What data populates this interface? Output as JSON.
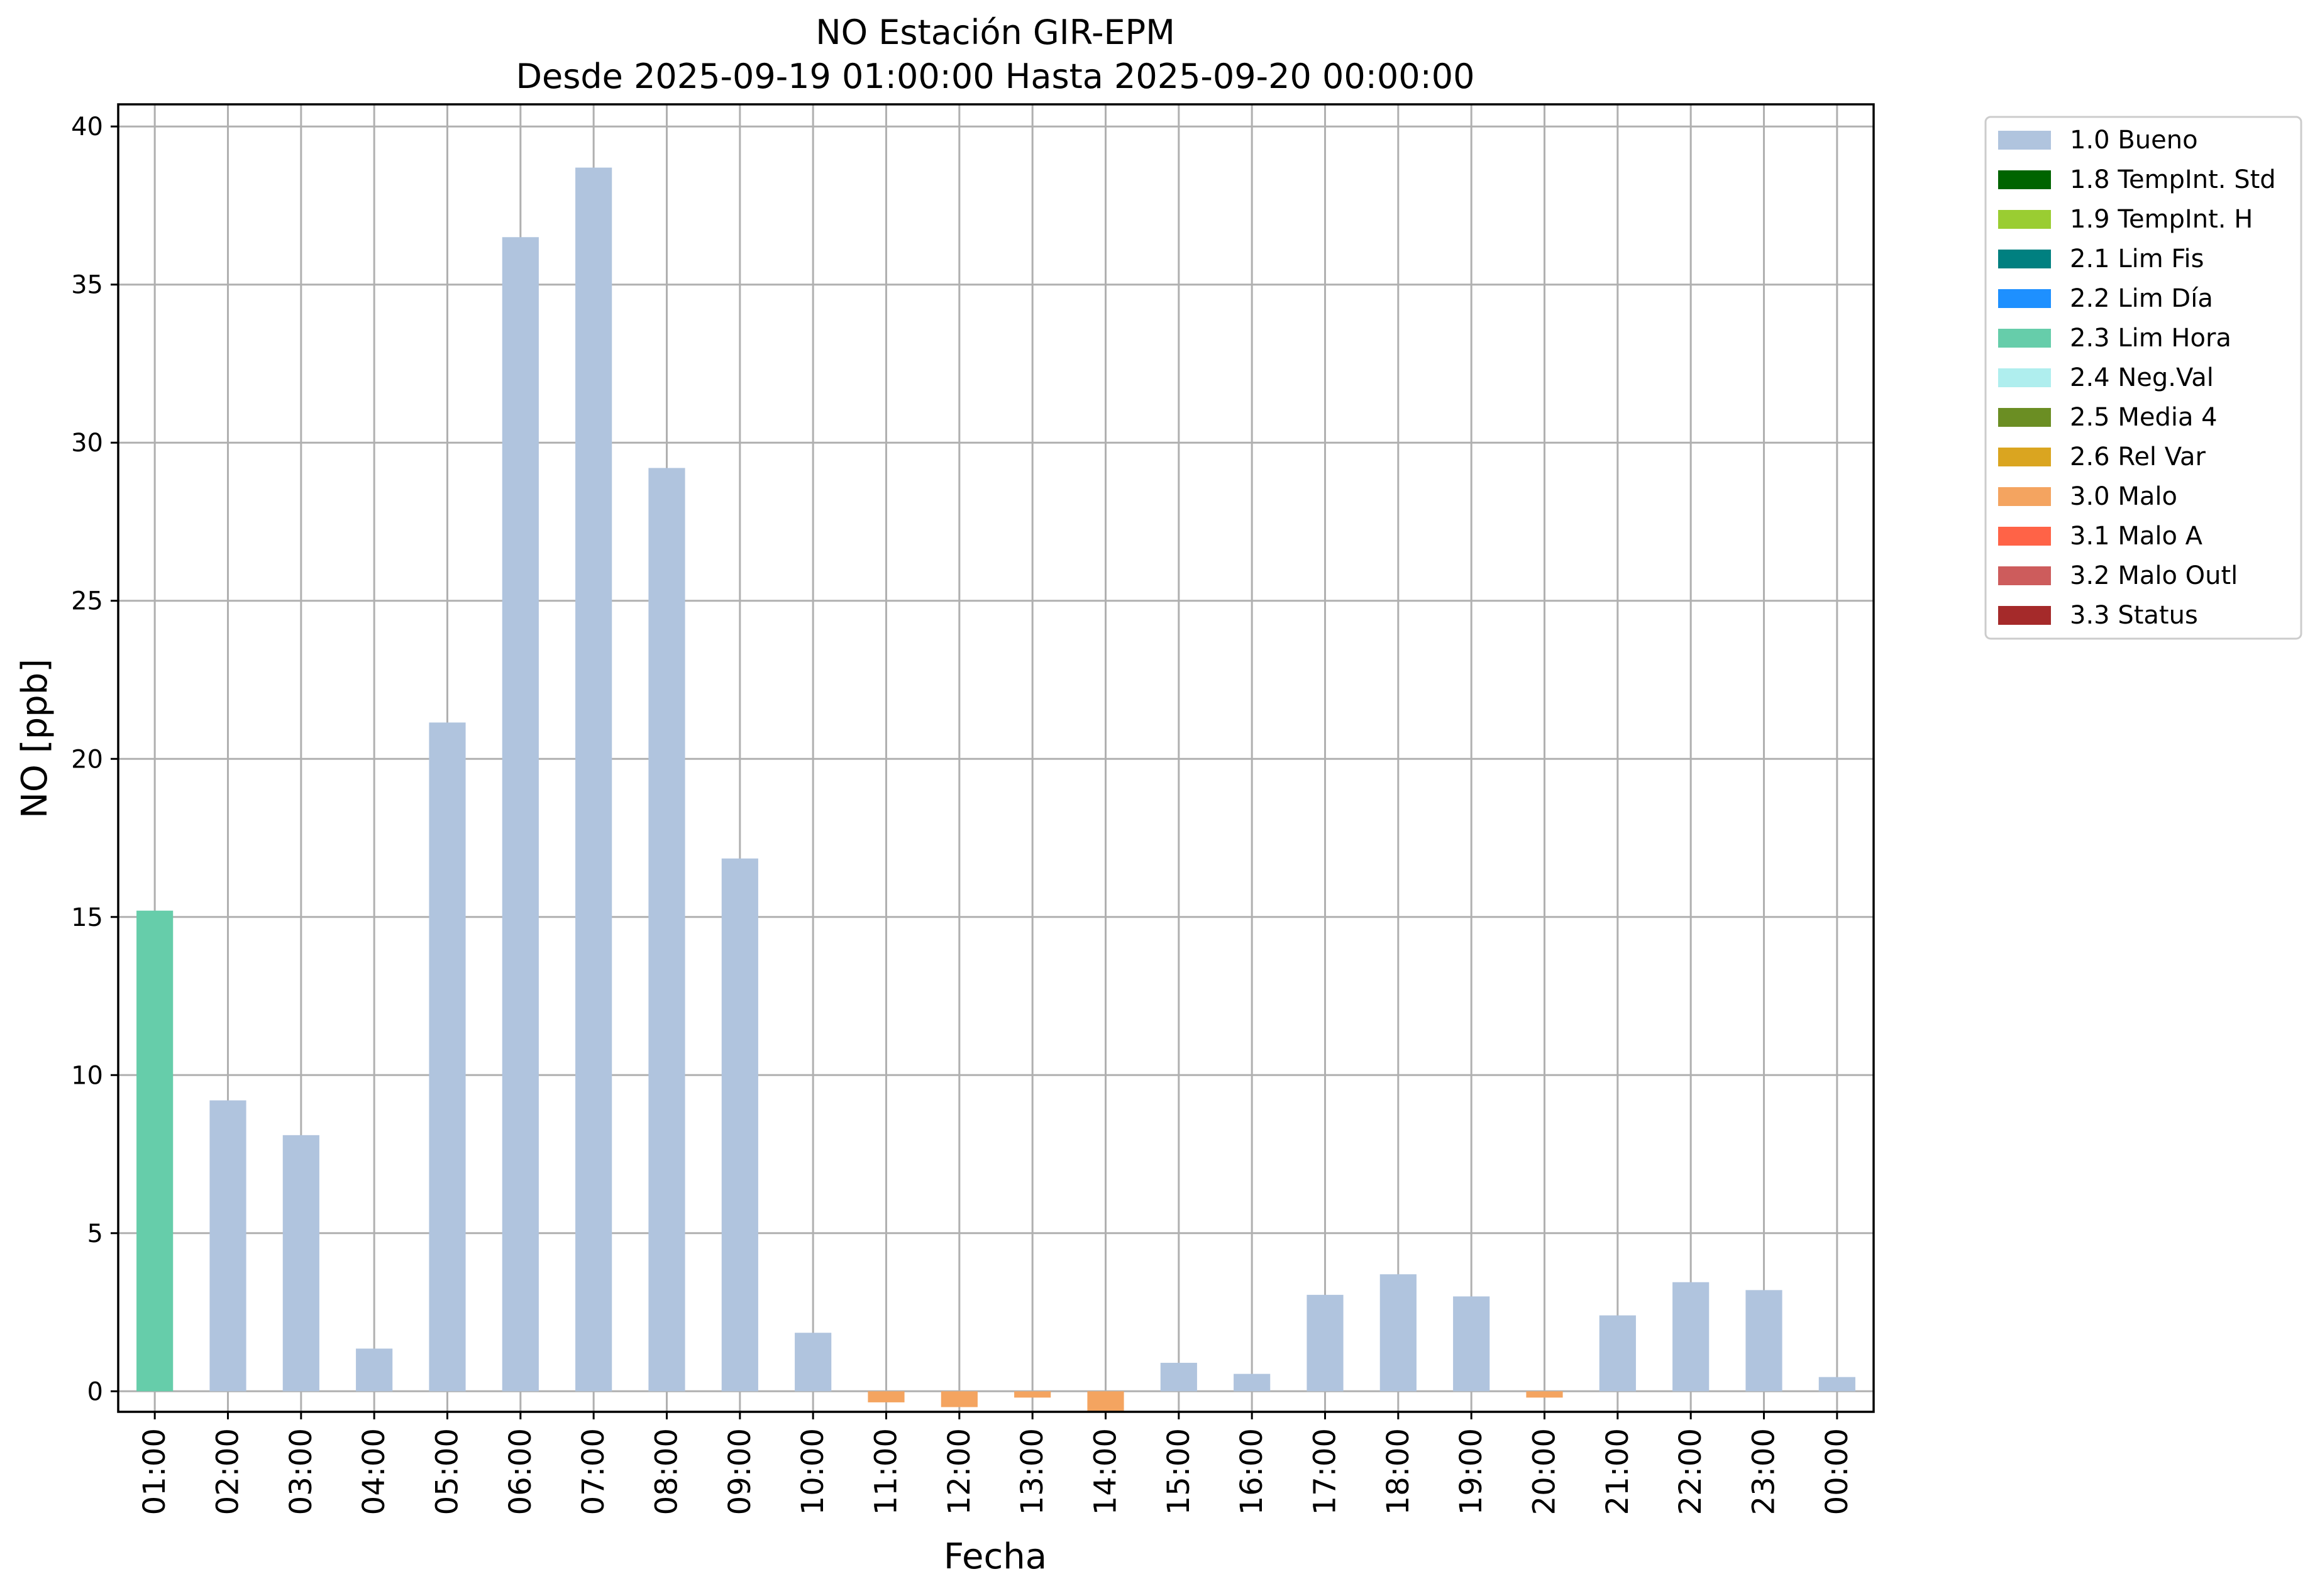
{
  "chart_data": {
    "type": "bar",
    "title": "NO Estación GIR-EPM",
    "subtitle": "Desde 2025-09-19 01:00:00 Hasta 2025-09-20 00:00:00",
    "xlabel": "Fecha",
    "ylabel": "NO [ppb]",
    "ylim": [
      -0.65,
      40.7
    ],
    "yticks": [
      0,
      5,
      10,
      15,
      20,
      25,
      30,
      35,
      40
    ],
    "grid": true,
    "legend_position": "outside right, top",
    "categories": [
      "01:00",
      "02:00",
      "03:00",
      "04:00",
      "05:00",
      "06:00",
      "07:00",
      "08:00",
      "09:00",
      "10:00",
      "11:00",
      "12:00",
      "13:00",
      "14:00",
      "15:00",
      "16:00",
      "17:00",
      "18:00",
      "19:00",
      "20:00",
      "21:00",
      "22:00",
      "23:00",
      "00:00"
    ],
    "values": [
      15.2,
      9.2,
      8.1,
      1.35,
      21.15,
      36.5,
      38.7,
      29.2,
      16.85,
      1.85,
      -0.35,
      -0.5,
      -0.2,
      -0.65,
      0.9,
      0.55,
      3.05,
      3.7,
      3.0,
      -0.2,
      2.4,
      3.45,
      3.2,
      0.45
    ],
    "flags": [
      "2.3 Lim Hora",
      "1.0 Bueno",
      "1.0 Bueno",
      "1.0 Bueno",
      "1.0 Bueno",
      "1.0 Bueno",
      "1.0 Bueno",
      "1.0 Bueno",
      "1.0 Bueno",
      "1.0 Bueno",
      "3.0 Malo",
      "3.0 Malo",
      "3.0 Malo",
      "3.0 Malo",
      "1.0 Bueno",
      "1.0 Bueno",
      "1.0 Bueno",
      "1.0 Bueno",
      "1.0 Bueno",
      "3.0 Malo",
      "1.0 Bueno",
      "1.0 Bueno",
      "1.0 Bueno",
      "1.0 Bueno"
    ],
    "legend": [
      {
        "name": "1.0 Bueno",
        "color": "#b0c4de"
      },
      {
        "name": "1.8 TempInt. Std",
        "color": "#006400"
      },
      {
        "name": "1.9 TempInt. H",
        "color": "#9acd32"
      },
      {
        "name": "2.1 Lim Fis",
        "color": "#008080"
      },
      {
        "name": "2.2 Lim Día",
        "color": "#1e90ff"
      },
      {
        "name": "2.3 Lim Hora",
        "color": "#66cdaa"
      },
      {
        "name": "2.4 Neg.Val",
        "color": "#afeeee"
      },
      {
        "name": "2.5 Media 4",
        "color": "#6b8e23"
      },
      {
        "name": "2.6 Rel Var",
        "color": "#daa520"
      },
      {
        "name": "3.0 Malo",
        "color": "#f4a460"
      },
      {
        "name": "3.1 Malo A",
        "color": "#ff6347"
      },
      {
        "name": "3.2 Malo Outl",
        "color": "#cd5c5c"
      },
      {
        "name": "3.3 Status",
        "color": "#a52a2a"
      }
    ]
  }
}
